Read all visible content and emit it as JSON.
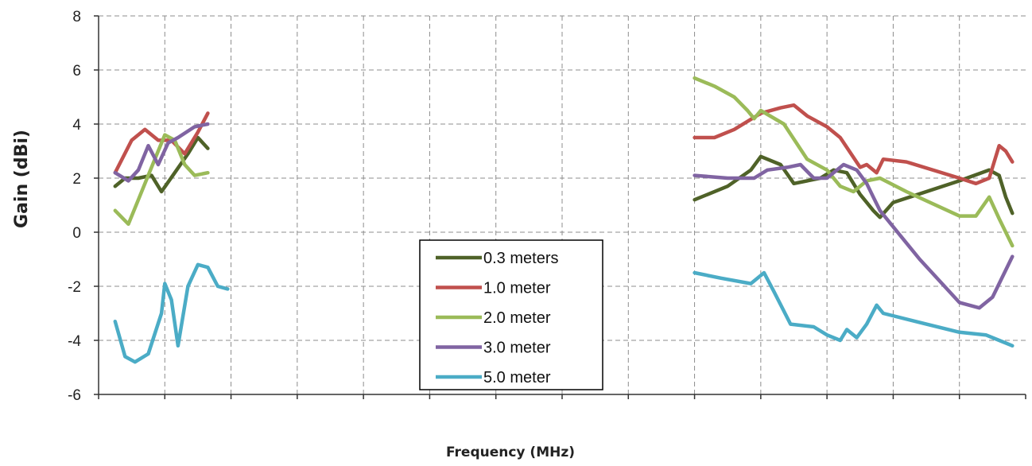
{
  "chart_data": {
    "type": "line",
    "title": "",
    "xlabel": "Frequency (MHz)",
    "ylabel": "Gain (dBi)",
    "ylim": [
      -6,
      8
    ],
    "yticks": [
      8,
      6,
      4,
      2,
      0,
      -2,
      -4,
      -6
    ],
    "y_tick_labels": [
      "8",
      "6",
      "4",
      "2",
      "0",
      "-2",
      "-4",
      "-6"
    ],
    "x_tick_labels": [],
    "xlim": [
      0,
      14
    ],
    "grid": true,
    "legend_position": "center-bottom",
    "series": [
      {
        "name": "0.3 meters",
        "color": "#4f6228",
        "segments": [
          [
            [
              0.25,
              1.7
            ],
            [
              0.4,
              2.0
            ],
            [
              0.6,
              2.0
            ],
            [
              0.8,
              2.1
            ],
            [
              0.95,
              1.5
            ],
            [
              1.15,
              2.2
            ],
            [
              1.35,
              2.9
            ],
            [
              1.5,
              3.5
            ],
            [
              1.65,
              3.1
            ]
          ],
          [
            [
              9.0,
              1.2
            ],
            [
              9.5,
              1.7
            ],
            [
              9.85,
              2.3
            ],
            [
              10.0,
              2.8
            ],
            [
              10.3,
              2.5
            ],
            [
              10.5,
              1.8
            ],
            [
              10.9,
              2.0
            ],
            [
              11.1,
              2.3
            ],
            [
              11.3,
              2.2
            ],
            [
              11.5,
              1.4
            ],
            [
              11.7,
              0.8
            ],
            [
              11.8,
              0.55
            ],
            [
              12.0,
              1.1
            ],
            [
              13.0,
              1.9
            ],
            [
              13.45,
              2.3
            ],
            [
              13.6,
              2.1
            ],
            [
              13.7,
              1.3
            ],
            [
              13.8,
              0.7
            ]
          ]
        ]
      },
      {
        "name": "1.0 meter",
        "color": "#c0504d",
        "segments": [
          [
            [
              0.25,
              2.2
            ],
            [
              0.5,
              3.4
            ],
            [
              0.7,
              3.8
            ],
            [
              0.9,
              3.4
            ],
            [
              1.1,
              3.4
            ],
            [
              1.3,
              2.9
            ],
            [
              1.5,
              3.7
            ],
            [
              1.65,
              4.4
            ]
          ],
          [
            [
              9.0,
              3.5
            ],
            [
              9.3,
              3.5
            ],
            [
              9.6,
              3.8
            ],
            [
              10.0,
              4.4
            ],
            [
              10.3,
              4.6
            ],
            [
              10.5,
              4.7
            ],
            [
              10.7,
              4.3
            ],
            [
              11.0,
              3.9
            ],
            [
              11.2,
              3.5
            ],
            [
              11.5,
              2.4
            ],
            [
              11.6,
              2.5
            ],
            [
              11.75,
              2.2
            ],
            [
              11.85,
              2.7
            ],
            [
              12.2,
              2.6
            ],
            [
              13.0,
              2.0
            ],
            [
              13.25,
              1.8
            ],
            [
              13.45,
              2.0
            ],
            [
              13.6,
              3.2
            ],
            [
              13.7,
              3.0
            ],
            [
              13.8,
              2.6
            ]
          ]
        ]
      },
      {
        "name": "2.0 meter",
        "color": "#9bbb59",
        "segments": [
          [
            [
              0.25,
              0.8
            ],
            [
              0.45,
              0.3
            ],
            [
              0.6,
              1.2
            ],
            [
              0.8,
              2.4
            ],
            [
              1.0,
              3.6
            ],
            [
              1.15,
              3.4
            ],
            [
              1.3,
              2.5
            ],
            [
              1.45,
              2.1
            ],
            [
              1.65,
              2.2
            ]
          ],
          [
            [
              9.0,
              5.7
            ],
            [
              9.3,
              5.4
            ],
            [
              9.6,
              5.0
            ],
            [
              9.8,
              4.5
            ],
            [
              9.9,
              4.2
            ],
            [
              10.0,
              4.5
            ],
            [
              10.35,
              4.0
            ],
            [
              10.7,
              2.7
            ],
            [
              11.0,
              2.3
            ],
            [
              11.2,
              1.7
            ],
            [
              11.4,
              1.5
            ],
            [
              11.6,
              1.9
            ],
            [
              11.8,
              2.0
            ],
            [
              12.2,
              1.5
            ],
            [
              13.0,
              0.6
            ],
            [
              13.25,
              0.6
            ],
            [
              13.45,
              1.3
            ],
            [
              13.6,
              0.5
            ],
            [
              13.8,
              -0.5
            ]
          ]
        ]
      },
      {
        "name": "3.0 meter",
        "color": "#8064a2",
        "segments": [
          [
            [
              0.25,
              2.2
            ],
            [
              0.45,
              1.9
            ],
            [
              0.6,
              2.3
            ],
            [
              0.75,
              3.2
            ],
            [
              0.9,
              2.5
            ],
            [
              1.05,
              3.3
            ],
            [
              1.2,
              3.5
            ],
            [
              1.45,
              3.9
            ],
            [
              1.65,
              4.0
            ]
          ],
          [
            [
              9.0,
              2.1
            ],
            [
              9.5,
              2.0
            ],
            [
              9.9,
              2.0
            ],
            [
              10.1,
              2.3
            ],
            [
              10.4,
              2.4
            ],
            [
              10.6,
              2.5
            ],
            [
              10.8,
              2.0
            ],
            [
              11.0,
              2.0
            ],
            [
              11.25,
              2.5
            ],
            [
              11.45,
              2.3
            ],
            [
              11.6,
              1.8
            ],
            [
              11.7,
              1.3
            ],
            [
              11.8,
              0.8
            ],
            [
              12.4,
              -1.0
            ],
            [
              13.0,
              -2.6
            ],
            [
              13.3,
              -2.8
            ],
            [
              13.5,
              -2.4
            ],
            [
              13.8,
              -0.9
            ]
          ]
        ]
      },
      {
        "name": "5.0 meter",
        "color": "#4bacc6",
        "segments": [
          [
            [
              0.25,
              -3.3
            ],
            [
              0.4,
              -4.6
            ],
            [
              0.55,
              -4.8
            ],
            [
              0.75,
              -4.5
            ],
            [
              0.95,
              -3.0
            ],
            [
              1.0,
              -1.9
            ],
            [
              1.1,
              -2.5
            ],
            [
              1.2,
              -4.2
            ],
            [
              1.35,
              -2.0
            ],
            [
              1.5,
              -1.2
            ],
            [
              1.65,
              -1.3
            ],
            [
              1.8,
              -2.0
            ],
            [
              1.95,
              -2.1
            ]
          ],
          [
            [
              9.0,
              -1.5
            ],
            [
              9.4,
              -1.7
            ],
            [
              9.85,
              -1.9
            ],
            [
              10.05,
              -1.5
            ],
            [
              10.2,
              -2.2
            ],
            [
              10.45,
              -3.4
            ],
            [
              10.8,
              -3.5
            ],
            [
              11.0,
              -3.8
            ],
            [
              11.2,
              -4.0
            ],
            [
              11.3,
              -3.6
            ],
            [
              11.45,
              -3.9
            ],
            [
              11.6,
              -3.4
            ],
            [
              11.75,
              -2.7
            ],
            [
              11.85,
              -3.0
            ],
            [
              12.5,
              -3.4
            ],
            [
              13.0,
              -3.7
            ],
            [
              13.4,
              -3.8
            ],
            [
              13.6,
              -4.0
            ],
            [
              13.8,
              -4.2
            ]
          ]
        ]
      }
    ]
  }
}
